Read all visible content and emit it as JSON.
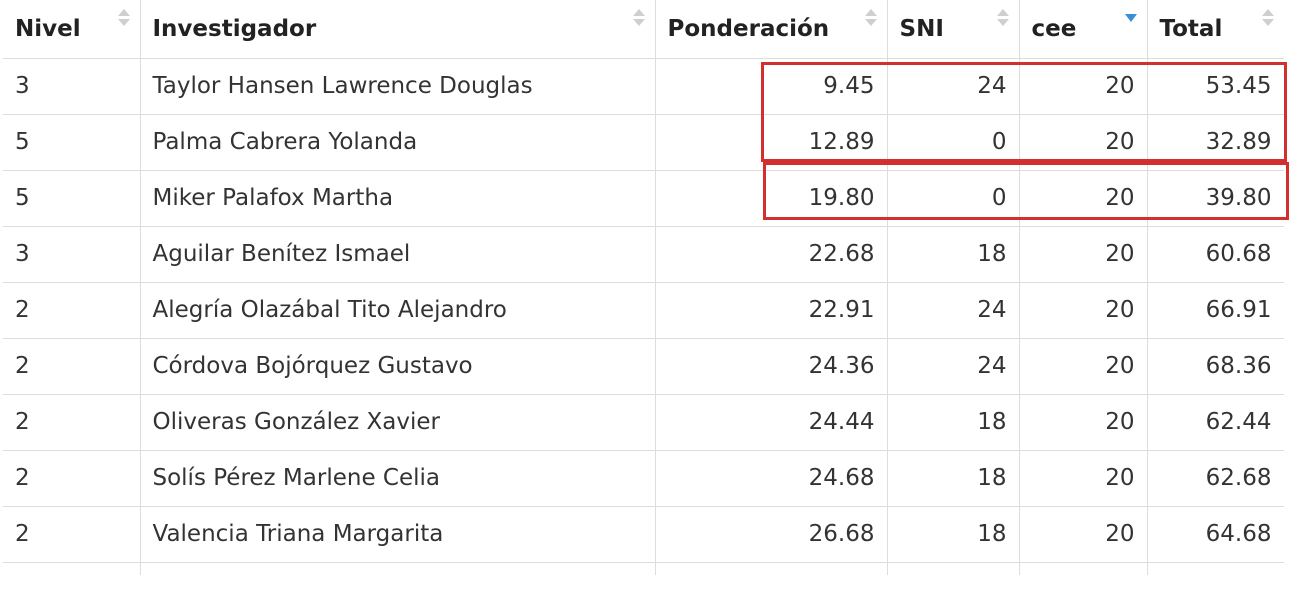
{
  "table": {
    "headers": [
      {
        "label": "Nivel",
        "sort": "none"
      },
      {
        "label": "Investigador",
        "sort": "none"
      },
      {
        "label": "Ponderación",
        "sort": "none"
      },
      {
        "label": "SNI",
        "sort": "none"
      },
      {
        "label": "cee",
        "sort": "descending"
      },
      {
        "label": "Total",
        "sort": "none"
      }
    ],
    "rows": [
      {
        "nivel": "3",
        "investigador": "Taylor Hansen Lawrence Douglas",
        "ponderacion": "9.45",
        "sni": "24",
        "cee": "20",
        "total": "53.45"
      },
      {
        "nivel": "5",
        "investigador": "Palma Cabrera Yolanda",
        "ponderacion": "12.89",
        "sni": "0",
        "cee": "20",
        "total": "32.89"
      },
      {
        "nivel": "5",
        "investigador": "Miker Palafox Martha",
        "ponderacion": "19.80",
        "sni": "0",
        "cee": "20",
        "total": "39.80"
      },
      {
        "nivel": "3",
        "investigador": "Aguilar Benítez Ismael",
        "ponderacion": "22.68",
        "sni": "18",
        "cee": "20",
        "total": "60.68"
      },
      {
        "nivel": "2",
        "investigador": "Alegría Olazábal Tito Alejandro",
        "ponderacion": "22.91",
        "sni": "24",
        "cee": "20",
        "total": "66.91"
      },
      {
        "nivel": "2",
        "investigador": "Córdova Bojórquez Gustavo",
        "ponderacion": "24.36",
        "sni": "24",
        "cee": "20",
        "total": "68.36"
      },
      {
        "nivel": "2",
        "investigador": "Oliveras González Xavier",
        "ponderacion": "24.44",
        "sni": "18",
        "cee": "20",
        "total": "62.44"
      },
      {
        "nivel": "2",
        "investigador": "Solís Pérez Marlene Celia",
        "ponderacion": "24.68",
        "sni": "18",
        "cee": "20",
        "total": "62.68"
      },
      {
        "nivel": "2",
        "investigador": "Valencia Triana Margarita",
        "ponderacion": "26.68",
        "sni": "18",
        "cee": "20",
        "total": "64.68"
      }
    ]
  },
  "colors": {
    "highlight": "#d32f2f",
    "sort_active": "#3a8ed6",
    "sort_inactive": "#cfcfcf",
    "border": "#dddddd"
  },
  "icons": {
    "sort_inactive": "sort-both-icon",
    "sort_active": "sort-descending-icon"
  }
}
